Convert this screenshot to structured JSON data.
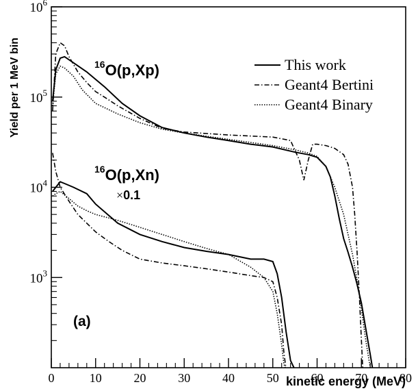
{
  "chart_data": {
    "type": "line",
    "panel_label": "(a)",
    "xlabel": "kinetic energy (MeV)",
    "ylabel": "Yield per 1 MeV bin",
    "xlim": [
      0,
      80
    ],
    "ylim": [
      100,
      1000000
    ],
    "yscale": "log",
    "grid": false,
    "legend_position": "top-right",
    "x_ticks": [
      0,
      10,
      20,
      30,
      40,
      50,
      60,
      70,
      80
    ],
    "x_tick_labels": [
      "0",
      "10",
      "20",
      "30",
      "40",
      "50",
      "60",
      "70",
      "80"
    ],
    "y_ticks": [
      {
        "value": 1000,
        "base": "10",
        "exp": "3"
      },
      {
        "value": 10000,
        "base": "10",
        "exp": "4"
      },
      {
        "value": 100000,
        "base": "10",
        "exp": "5"
      },
      {
        "value": 1000000,
        "base": "10",
        "exp": "6"
      }
    ],
    "legend": [
      {
        "label": "This work",
        "dash": "solid"
      },
      {
        "label": "Geant4 Bertini",
        "dash": "dashdot"
      },
      {
        "label": "Geant4 Binary",
        "dash": "dotted"
      }
    ],
    "annotations": {
      "xp_sup": "16",
      "xp_main": "O(p,Xp)",
      "xn_sup": "16",
      "xn_main": "O(p,Xn)",
      "xn_scale_sym": "×",
      "xn_scale_val": "0.1"
    },
    "series": [
      {
        "name": "This work",
        "group": "O(p,Xp)",
        "dash": "solid",
        "x": [
          0.3,
          1,
          2,
          3,
          5,
          8,
          12,
          16,
          20,
          25,
          30,
          35,
          40,
          45,
          50,
          55,
          58,
          60,
          62,
          63,
          64,
          65,
          66,
          67,
          68,
          69,
          70,
          71,
          72,
          72.5
        ],
        "y": [
          90000,
          200000,
          270000,
          280000,
          240000,
          190000,
          130000,
          85000,
          62000,
          46000,
          40000,
          36000,
          33000,
          30000,
          28000,
          24500,
          23000,
          21500,
          17000,
          13000,
          8000,
          4500,
          2700,
          1900,
          1300,
          850,
          520,
          270,
          140,
          100
        ]
      },
      {
        "name": "Geant4 Bertini",
        "group": "O(p,Xp)",
        "dash": "dashdot",
        "x": [
          0.3,
          1,
          2,
          3,
          4,
          6,
          8,
          10,
          12,
          15,
          20,
          25,
          30,
          40,
          50,
          54,
          56,
          57,
          58,
          59,
          60,
          62,
          64,
          66,
          67,
          68,
          68.5,
          69,
          69.5,
          70,
          70.3
        ],
        "y": [
          70000,
          300000,
          400000,
          370000,
          280000,
          190000,
          145000,
          115000,
          100000,
          80000,
          58000,
          45000,
          41000,
          38000,
          36000,
          33000,
          20000,
          12000,
          20000,
          30000,
          30000,
          29000,
          27000,
          23000,
          18000,
          10000,
          5000,
          2000,
          700,
          200,
          100
        ]
      },
      {
        "name": "Geant4 Binary",
        "group": "O(p,Xp)",
        "dash": "dotted",
        "x": [
          0.3,
          1,
          2,
          3,
          5,
          7,
          10,
          15,
          20,
          25,
          30,
          40,
          50,
          55,
          58,
          60,
          62,
          64,
          66,
          67,
          68,
          69,
          70,
          71,
          72
        ],
        "y": [
          80000,
          180000,
          220000,
          210000,
          170000,
          120000,
          85000,
          65000,
          52000,
          44000,
          40000,
          34000,
          29000,
          26000,
          24000,
          22000,
          17000,
          10000,
          5000,
          3000,
          1800,
          950,
          450,
          200,
          100
        ]
      },
      {
        "name": "This work",
        "group": "O(p,Xn)",
        "dash": "solid",
        "x": [
          0.3,
          1,
          2,
          3,
          5,
          8,
          10,
          15,
          20,
          25,
          30,
          35,
          40,
          45,
          48,
          50,
          51,
          52,
          53,
          54,
          55
        ],
        "y": [
          9000,
          10000,
          11500,
          11000,
          10000,
          8500,
          6500,
          4000,
          3000,
          2500,
          2150,
          1950,
          1800,
          1600,
          1600,
          1500,
          1100,
          600,
          250,
          120,
          95
        ]
      },
      {
        "name": "Geant4 Bertini",
        "group": "O(p,Xn)",
        "dash": "dashdot",
        "x": [
          0.3,
          1,
          2,
          4,
          6,
          8,
          10,
          13,
          16,
          20,
          25,
          30,
          35,
          40,
          45,
          48,
          50,
          51,
          52,
          52.5,
          53
        ],
        "y": [
          24000,
          15000,
          10000,
          7000,
          5000,
          4000,
          3200,
          2500,
          2000,
          1600,
          1450,
          1350,
          1250,
          1150,
          1050,
          1000,
          900,
          600,
          300,
          150,
          95
        ]
      },
      {
        "name": "Geant4 Binary",
        "group": "O(p,Xn)",
        "dash": "dotted",
        "x": [
          0.3,
          1,
          2,
          4,
          6,
          8,
          10,
          15,
          20,
          25,
          30,
          35,
          40,
          45,
          48,
          50,
          51,
          52,
          52.5,
          53
        ],
        "y": [
          8000,
          8500,
          9000,
          7500,
          6200,
          5500,
          5000,
          4300,
          3600,
          3000,
          2500,
          2100,
          1800,
          1300,
          1000,
          700,
          400,
          180,
          110,
          95
        ]
      }
    ]
  }
}
